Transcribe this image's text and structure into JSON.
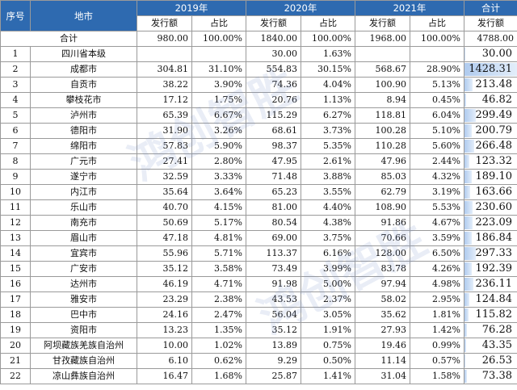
{
  "headers": {
    "seq": "序号",
    "region": "地市",
    "years": [
      "2019年",
      "2020年",
      "2021年"
    ],
    "sum_title": "合计",
    "sub_amount": "发行额",
    "sub_ratio": "占比"
  },
  "total_row": {
    "label": "合计",
    "v2019": "980.00",
    "r2019": "100.00%",
    "v2020": "1840.00",
    "r2020": "100.00%",
    "v2021": "1968.00",
    "r2021": "100.00%",
    "sum": "4788.00"
  },
  "rows": [
    {
      "no": "1",
      "name": "四川省本级",
      "v2019": "",
      "r2019": "",
      "v2020": "30.00",
      "r2020": "1.63%",
      "v2021": "",
      "r2021": "",
      "sum": "30.00",
      "level": 0.021
    },
    {
      "no": "2",
      "name": "成都市",
      "v2019": "304.81",
      "r2019": "31.10%",
      "v2020": "554.83",
      "r2020": "30.15%",
      "v2021": "568.67",
      "r2021": "28.90%",
      "sum": "1428.31",
      "level": 1.0
    },
    {
      "no": "3",
      "name": "自贡市",
      "v2019": "38.22",
      "r2019": "3.90%",
      "v2020": "74.36",
      "r2020": "4.04%",
      "v2021": "100.90",
      "r2021": "5.13%",
      "sum": "213.48",
      "level": 0.149
    },
    {
      "no": "4",
      "name": "攀枝花市",
      "v2019": "17.12",
      "r2019": "1.75%",
      "v2020": "20.76",
      "r2020": "1.13%",
      "v2021": "8.94",
      "r2021": "0.45%",
      "sum": "46.82",
      "level": 0.033
    },
    {
      "no": "5",
      "name": "泸州市",
      "v2019": "65.39",
      "r2019": "6.67%",
      "v2020": "115.29",
      "r2020": "6.27%",
      "v2021": "118.81",
      "r2021": "6.04%",
      "sum": "299.49",
      "level": 0.21
    },
    {
      "no": "6",
      "name": "德阳市",
      "v2019": "31.90",
      "r2019": "3.26%",
      "v2020": "68.61",
      "r2020": "3.73%",
      "v2021": "100.28",
      "r2021": "5.10%",
      "sum": "200.79",
      "level": 0.141
    },
    {
      "no": "7",
      "name": "绵阳市",
      "v2019": "57.83",
      "r2019": "5.90%",
      "v2020": "98.37",
      "r2020": "5.35%",
      "v2021": "110.28",
      "r2021": "5.60%",
      "sum": "266.48",
      "level": 0.187
    },
    {
      "no": "8",
      "name": "广元市",
      "v2019": "27.41",
      "r2019": "2.80%",
      "v2020": "47.95",
      "r2020": "2.61%",
      "v2021": "47.96",
      "r2021": "2.44%",
      "sum": "123.32",
      "level": 0.086
    },
    {
      "no": "9",
      "name": "遂宁市",
      "v2019": "32.59",
      "r2019": "3.33%",
      "v2020": "71.48",
      "r2020": "3.88%",
      "v2021": "85.03",
      "r2021": "4.32%",
      "sum": "189.10",
      "level": 0.132
    },
    {
      "no": "10",
      "name": "内江市",
      "v2019": "35.64",
      "r2019": "3.64%",
      "v2020": "65.23",
      "r2020": "3.55%",
      "v2021": "62.79",
      "r2021": "3.19%",
      "sum": "163.66",
      "level": 0.115
    },
    {
      "no": "11",
      "name": "乐山市",
      "v2019": "40.70",
      "r2019": "4.15%",
      "v2020": "81.00",
      "r2020": "4.40%",
      "v2021": "108.90",
      "r2021": "5.53%",
      "sum": "230.60",
      "level": 0.161
    },
    {
      "no": "12",
      "name": "南充市",
      "v2019": "50.69",
      "r2019": "5.17%",
      "v2020": "80.54",
      "r2020": "4.38%",
      "v2021": "91.86",
      "r2021": "4.67%",
      "sum": "223.09",
      "level": 0.156
    },
    {
      "no": "13",
      "name": "眉山市",
      "v2019": "47.18",
      "r2019": "4.81%",
      "v2020": "69.00",
      "r2020": "3.75%",
      "v2021": "70.66",
      "r2021": "3.59%",
      "sum": "186.84",
      "level": 0.131
    },
    {
      "no": "14",
      "name": "宜宾市",
      "v2019": "55.96",
      "r2019": "5.71%",
      "v2020": "113.37",
      "r2020": "6.16%",
      "v2021": "128.00",
      "r2021": "6.50%",
      "sum": "297.33",
      "level": 0.208
    },
    {
      "no": "15",
      "name": "广安市",
      "v2019": "35.12",
      "r2019": "3.58%",
      "v2020": "73.49",
      "r2020": "3.99%",
      "v2021": "83.78",
      "r2021": "4.26%",
      "sum": "192.39",
      "level": 0.135
    },
    {
      "no": "16",
      "name": "达州市",
      "v2019": "46.19",
      "r2019": "4.71%",
      "v2020": "91.98",
      "r2020": "5.00%",
      "v2021": "97.94",
      "r2021": "4.98%",
      "sum": "236.11",
      "level": 0.165
    },
    {
      "no": "17",
      "name": "雅安市",
      "v2019": "23.29",
      "r2019": "2.38%",
      "v2020": "43.53",
      "r2020": "2.37%",
      "v2021": "58.02",
      "r2021": "2.95%",
      "sum": "124.84",
      "level": 0.087
    },
    {
      "no": "18",
      "name": "巴中市",
      "v2019": "24.16",
      "r2019": "2.47%",
      "v2020": "56.04",
      "r2020": "3.05%",
      "v2021": "35.62",
      "r2021": "1.81%",
      "sum": "115.82",
      "level": 0.081
    },
    {
      "no": "19",
      "name": "资阳市",
      "v2019": "13.23",
      "r2019": "1.35%",
      "v2020": "35.12",
      "r2020": "1.91%",
      "v2021": "27.93",
      "r2021": "1.42%",
      "sum": "76.28",
      "level": 0.053
    },
    {
      "no": "20",
      "name": "阿坝藏族羌族自治州",
      "v2019": "10.00",
      "r2019": "1.02%",
      "v2020": "13.89",
      "r2020": "0.75%",
      "v2021": "19.46",
      "r2021": "0.99%",
      "sum": "43.35",
      "level": 0.03
    },
    {
      "no": "21",
      "name": "甘孜藏族自治州",
      "v2019": "6.10",
      "r2019": "0.62%",
      "v2020": "9.29",
      "r2020": "0.50%",
      "v2021": "11.14",
      "r2021": "0.57%",
      "sum": "26.53",
      "level": 0.019
    },
    {
      "no": "22",
      "name": "凉山彝族自治州",
      "v2019": "16.47",
      "r2019": "1.68%",
      "v2020": "25.87",
      "r2020": "1.41%",
      "v2021": "31.04",
      "r2021": "1.58%",
      "sum": "73.38",
      "level": 0.051
    }
  ],
  "watermark_text": "鸿创智胜"
}
